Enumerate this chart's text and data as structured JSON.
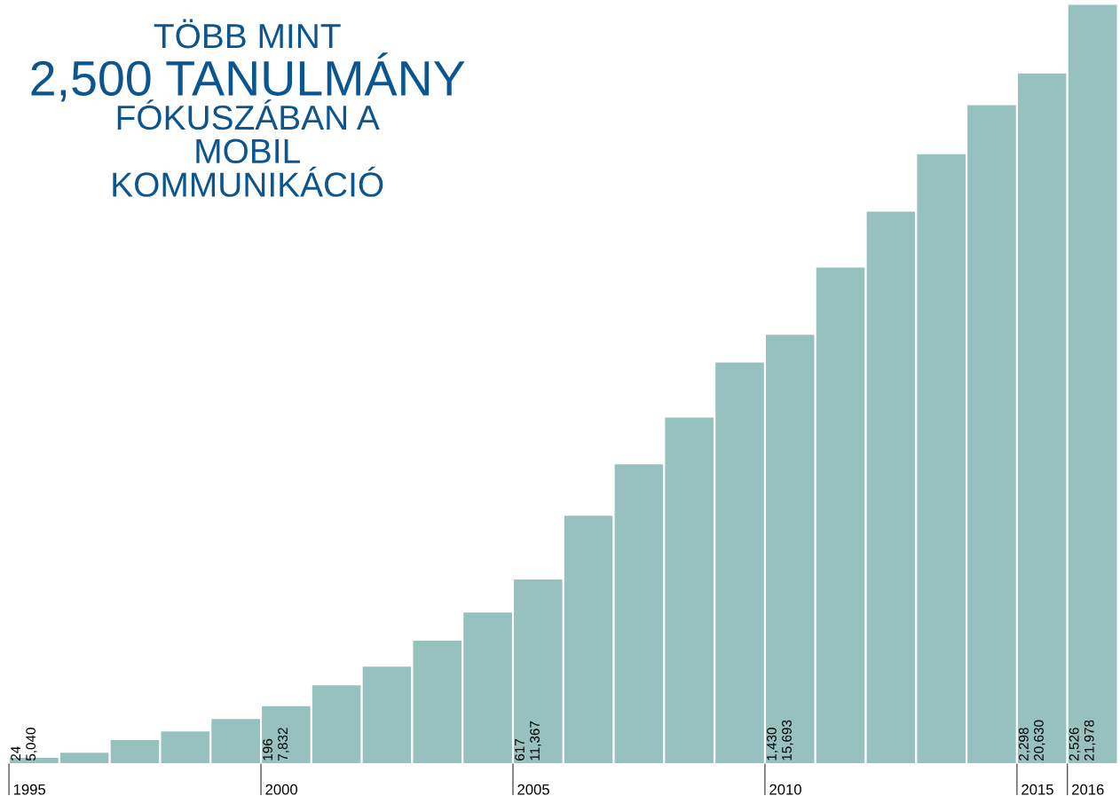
{
  "chart_data": {
    "type": "bar",
    "title": "TÖBB MINT\n2,500 TANULMÁNY\nFÓKUSZÁBAN A\nMOBIL\nKOMMUNIKÁCIÓ",
    "categories": [
      "1995",
      null,
      null,
      null,
      null,
      "2000",
      null,
      null,
      null,
      null,
      "2005",
      null,
      null,
      null,
      null,
      "2010",
      null,
      null,
      null,
      null,
      "2015",
      "2016"
    ],
    "values": [
      24,
      41,
      83,
      112,
      153,
      196,
      265,
      327,
      413,
      507,
      617,
      828,
      999,
      1155,
      1338,
      1430,
      1653,
      1839,
      2030,
      2193,
      2298,
      2526
    ],
    "value_labels": [
      "24",
      null,
      null,
      null,
      null,
      "196",
      null,
      null,
      null,
      null,
      "617",
      null,
      null,
      null,
      null,
      "1,430",
      null,
      null,
      null,
      null,
      "2,298",
      "2,526"
    ],
    "annotations": [
      {
        "text": "5,040",
        "x": "1995",
        "y": 0
      },
      {
        "text": "7,832",
        "x": "2000",
        "y": 0
      },
      {
        "text": "11,367",
        "x": "2005",
        "y": 0
      },
      {
        "text": "15,693",
        "x": "2010",
        "y": 0
      },
      {
        "text": "20,630",
        "x": "2015",
        "y": 0
      },
      {
        "text": "21,978",
        "x": "2016",
        "y": 0
      }
    ],
    "color": "#96c1be",
    "ylim": [
      0,
      2526
    ],
    "tick_labels": "x",
    "legend": false
  }
}
